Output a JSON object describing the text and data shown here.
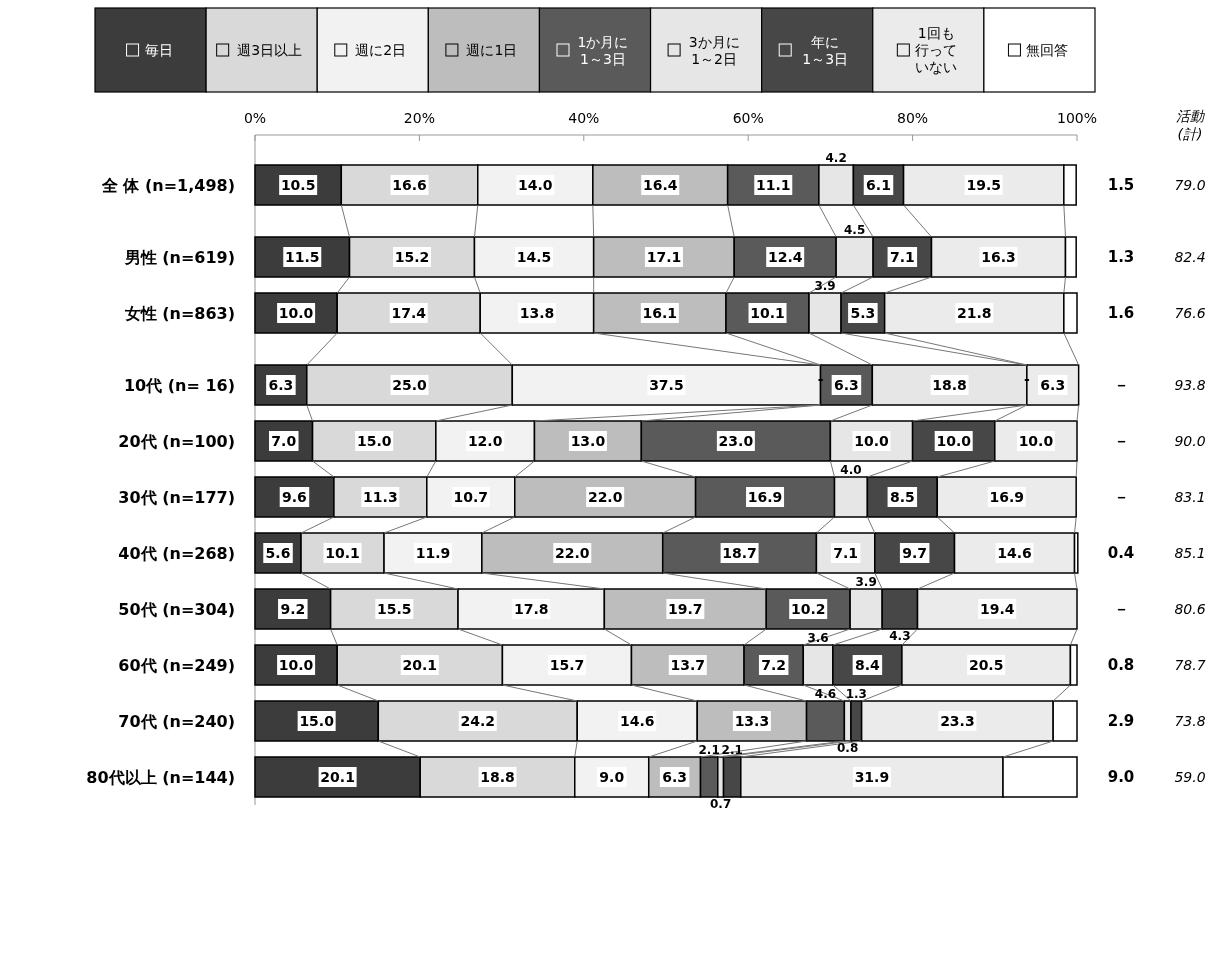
{
  "chart_data": {
    "type": "bar",
    "orientation": "horizontal",
    "stacked": true,
    "legend": "top",
    "grid": false,
    "categories": [
      "全 体 (n=1,498)",
      "男性 (n=619)",
      "女性 (n=863)",
      "10代 (n= 16)",
      "20代 (n=100)",
      "30代 (n=177)",
      "40代 (n=268)",
      "50代 (n=304)",
      "60代 (n=249)",
      "70代 (n=240)",
      "80代以上 (n=144)"
    ],
    "xlim": [
      0,
      100
    ],
    "xticks": [
      {
        "value": 0,
        "label": "0%"
      },
      {
        "value": 20,
        "label": "20%"
      },
      {
        "value": 40,
        "label": "40%"
      },
      {
        "value": 60,
        "label": "60%"
      },
      {
        "value": 80,
        "label": "80%"
      },
      {
        "value": 100,
        "label": "100%"
      }
    ],
    "series": [
      {
        "name": "毎日",
        "color": "#3c3c3c",
        "values": [
          10.5,
          11.5,
          10.0,
          6.3,
          7.0,
          9.6,
          5.6,
          9.2,
          10.0,
          15.0,
          20.1
        ],
        "value_labels": [
          "10.5",
          "11.5",
          "10.0",
          "6.3",
          "7.0",
          "9.6",
          "5.6",
          "9.2",
          "10.0",
          "15.0",
          "20.1"
        ]
      },
      {
        "name": "週3日以上",
        "color": "#d9d9d9",
        "values": [
          16.6,
          15.2,
          17.4,
          25.0,
          15.0,
          11.3,
          10.1,
          15.5,
          20.1,
          24.2,
          18.8
        ],
        "value_labels": [
          "16.6",
          "15.2",
          "17.4",
          "25.0",
          "15.0",
          "11.3",
          "10.1",
          "15.5",
          "20.1",
          "24.2",
          "18.8"
        ]
      },
      {
        "name": "週に2日",
        "color": "#f2f2f2",
        "values": [
          14.0,
          14.5,
          13.8,
          37.5,
          12.0,
          10.7,
          11.9,
          17.8,
          15.7,
          14.6,
          9.0
        ],
        "value_labels": [
          "14.0",
          "14.5",
          "13.8",
          "37.5",
          "12.0",
          "10.7",
          "11.9",
          "17.8",
          "15.7",
          "14.6",
          "9.0"
        ]
      },
      {
        "name": "週に1日",
        "color": "#bdbdbd",
        "values": [
          16.4,
          17.1,
          16.1,
          null,
          13.0,
          22.0,
          22.0,
          19.7,
          13.7,
          13.3,
          6.3
        ],
        "value_labels": [
          "16.4",
          "17.1",
          "16.1",
          "-",
          "13.0",
          "22.0",
          "22.0",
          "19.7",
          "13.7",
          "13.3",
          "6.3"
        ]
      },
      {
        "name": "1か月に1～3日",
        "color": "#5a5a5a",
        "values": [
          11.1,
          12.4,
          10.1,
          6.3,
          23.0,
          16.9,
          18.7,
          10.2,
          7.2,
          4.6,
          2.1
        ],
        "value_labels": [
          "11.1",
          "12.4",
          "10.1",
          "6.3",
          "23.0",
          "16.9",
          "18.7",
          "10.2",
          "7.2",
          "4.6",
          "2.1"
        ]
      },
      {
        "name": "3か月に1～2日",
        "color": "#e6e6e6",
        "values": [
          4.2,
          4.5,
          3.9,
          18.8,
          10.0,
          4.0,
          7.1,
          3.9,
          3.6,
          0.8,
          0.7
        ],
        "value_labels": [
          "4.2",
          "4.5",
          "3.9",
          "18.8",
          "10.0",
          "4.0",
          "7.1",
          "3.9",
          "3.6",
          "0.8",
          "0.7"
        ]
      },
      {
        "name": "年に1～3日",
        "color": "#474747",
        "values": [
          6.1,
          7.1,
          5.3,
          null,
          10.0,
          8.5,
          9.7,
          4.3,
          8.4,
          1.3,
          2.1
        ],
        "value_labels": [
          "6.1",
          "7.1",
          "5.3",
          "-",
          "10.0",
          "8.5",
          "9.7",
          "4.3",
          "8.4",
          "1.3",
          "2.1"
        ]
      },
      {
        "name": "1回も行っていない",
        "color": "#ebebeb",
        "values": [
          19.5,
          16.3,
          21.8,
          6.3,
          10.0,
          16.9,
          14.6,
          19.4,
          20.5,
          23.3,
          31.9
        ],
        "value_labels": [
          "19.5",
          "16.3",
          "21.8",
          "6.3",
          "10.0",
          "16.9",
          "14.6",
          "19.4",
          "20.5",
          "23.3",
          "31.9"
        ]
      },
      {
        "name": "無回答",
        "color": "#ffffff",
        "values": [
          1.5,
          1.3,
          1.6,
          0,
          0,
          0,
          0.4,
          0,
          0.8,
          2.9,
          9.0
        ],
        "value_labels": [
          "1.5",
          "1.3",
          "1.6",
          "－",
          "－",
          "－",
          "0.4",
          "－",
          "0.8",
          "2.9",
          "9.0"
        ]
      }
    ],
    "annotations": [
      "活動\n(計)",
      "79.0",
      "82.4",
      "76.6",
      "93.8",
      "90.0",
      "83.1",
      "85.1",
      "80.6",
      "78.7",
      "73.8",
      "59.0"
    ]
  }
}
